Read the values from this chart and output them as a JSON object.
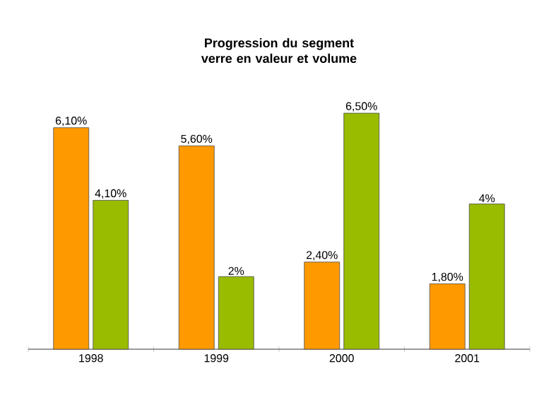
{
  "chart_data": {
    "type": "bar",
    "title": "Progression du segment verre en valeur et volume",
    "categories": [
      "1998",
      "1999",
      "2000",
      "2001"
    ],
    "series": [
      {
        "color": "#ff9900",
        "values": [
          6.1,
          5.6,
          2.4,
          1.8
        ],
        "value_labels": [
          "6,10%",
          "5,60%",
          "2,40%",
          "1,80%"
        ]
      },
      {
        "color": "#99bb00",
        "values": [
          4.1,
          2,
          6.5,
          4
        ],
        "value_labels": [
          "4,10%",
          "2%",
          "6,50%",
          "4%"
        ]
      }
    ]
  }
}
